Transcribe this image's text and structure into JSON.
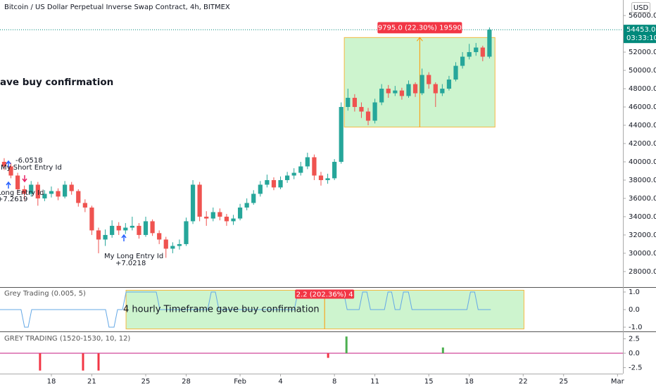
{
  "header": {
    "title": "Bitcoin / US Dollar Perpetual Inverse Swap Contract, 4h, BITMEX",
    "currency": "USD"
  },
  "chart_data": [
    {
      "type": "candlestick",
      "x": [
        14.5,
        15,
        15.5,
        16,
        16.5,
        17,
        17.5,
        18,
        18.5,
        19,
        19.5,
        20,
        20.5,
        21,
        21.5,
        22,
        22.5,
        23,
        23.5,
        24,
        24.5,
        25,
        25.5,
        26,
        26.5,
        27,
        27.5,
        28,
        28.5,
        29,
        29.5,
        30,
        30.5,
        31,
        31.5,
        32,
        32.5,
        33,
        33.5,
        34,
        34.5,
        35,
        35.5,
        36,
        36.5,
        37,
        37.5,
        38,
        38.5,
        39,
        39.5,
        40,
        40.5,
        41,
        41.5,
        42,
        42.5,
        43,
        43.5,
        44,
        44.5,
        45,
        45.5,
        46,
        46.5,
        47,
        47.5,
        48,
        48.5,
        49,
        49.5,
        50,
        50.5
      ],
      "open": [
        40000,
        39500,
        38500,
        37000,
        36500,
        37500,
        36000,
        36500,
        36800,
        36200,
        37500,
        36800,
        35500,
        35000,
        32500,
        31500,
        32000,
        33000,
        32500,
        32800,
        33000,
        32000,
        33500,
        32200,
        31500,
        30500,
        30800,
        31000,
        33500,
        37500,
        34000,
        33800,
        34500,
        34000,
        33500,
        33800,
        35000,
        35500,
        36500,
        37500,
        38000,
        37200,
        38000,
        38500,
        38800,
        39500,
        40500,
        38500,
        38000,
        38200,
        40000,
        46000,
        47000,
        46000,
        45500,
        44500,
        46500,
        48000,
        47500,
        47800,
        47200,
        48500,
        47500,
        49500,
        48500,
        47500,
        48000,
        49000,
        50500,
        51500,
        52000,
        52500,
        51500
      ],
      "high": [
        40400,
        39900,
        38800,
        37400,
        37900,
        37800,
        36900,
        37300,
        37100,
        37900,
        37800,
        37000,
        35900,
        35200,
        32800,
        32600,
        33600,
        33400,
        33300,
        34000,
        33300,
        34000,
        33700,
        32500,
        31800,
        31200,
        31500,
        33900,
        38000,
        37800,
        34600,
        35000,
        34900,
        34300,
        34200,
        35400,
        36000,
        36900,
        37900,
        38600,
        38300,
        38400,
        38900,
        39300,
        40000,
        41000,
        40800,
        38900,
        38700,
        40300,
        46500,
        48000,
        47400,
        46500,
        45900,
        46900,
        48500,
        48400,
        48300,
        48100,
        48900,
        48700,
        50200,
        49800,
        48700,
        48500,
        49400,
        50900,
        52000,
        52900,
        53000,
        52700,
        54700
      ],
      "low": [
        39100,
        38200,
        36600,
        35800,
        36200,
        35200,
        35700,
        36100,
        35800,
        36000,
        36400,
        35100,
        34500,
        32000,
        30000,
        30800,
        31700,
        32000,
        32100,
        32500,
        31600,
        31800,
        31900,
        31000,
        29500,
        30000,
        30400,
        30800,
        33200,
        33500,
        33000,
        33500,
        33600,
        33000,
        33100,
        33600,
        34700,
        35300,
        36200,
        37200,
        36900,
        37000,
        37700,
        38100,
        38500,
        39200,
        38000,
        37400,
        37600,
        38000,
        39800,
        45600,
        45500,
        44800,
        44000,
        44200,
        46200,
        47000,
        47200,
        46800,
        47000,
        47100,
        47300,
        48000,
        46000,
        47200,
        47800,
        48800,
        50200,
        51200,
        51600,
        51000,
        51300
      ],
      "close": [
        39500,
        38500,
        37000,
        36500,
        37500,
        36000,
        36500,
        36800,
        36200,
        37500,
        36800,
        35500,
        35000,
        32500,
        31500,
        32000,
        33000,
        32500,
        32800,
        33000,
        32000,
        33500,
        32200,
        31500,
        30500,
        30800,
        31000,
        33500,
        37500,
        34000,
        33800,
        34500,
        34000,
        33500,
        33800,
        35000,
        35500,
        36500,
        37500,
        38000,
        37200,
        38000,
        38500,
        38800,
        39500,
        40500,
        38500,
        38000,
        38200,
        40000,
        46000,
        47000,
        46000,
        45500,
        44500,
        46500,
        48000,
        47500,
        47800,
        47200,
        48500,
        47500,
        49500,
        48500,
        47500,
        48000,
        49000,
        50500,
        51500,
        52000,
        52500,
        51500,
        54453
      ],
      "up_color": "#26a69a",
      "down_color": "#ef5350",
      "xlim": [
        14.19,
        60.4
      ],
      "xticks": [
        {
          "value": 18,
          "label": "18"
        },
        {
          "value": 21,
          "label": "21"
        },
        {
          "value": 25,
          "label": "25"
        },
        {
          "value": 28,
          "label": "28"
        },
        {
          "value": 32,
          "label": "Feb"
        },
        {
          "value": 35,
          "label": "4"
        },
        {
          "value": 39,
          "label": "8"
        },
        {
          "value": 42,
          "label": "11"
        },
        {
          "value": 46,
          "label": "15"
        },
        {
          "value": 49,
          "label": "18"
        },
        {
          "value": 53,
          "label": "22"
        },
        {
          "value": 56,
          "label": "25"
        },
        {
          "value": 60,
          "label": "Mar"
        }
      ],
      "ylim": [
        26300,
        57700
      ],
      "yticks": [
        {
          "value": 28000,
          "label": "28000.0"
        },
        {
          "value": 30000,
          "label": "30000.0"
        },
        {
          "value": 32000,
          "label": "32000.0"
        },
        {
          "value": 34000,
          "label": "34000.0"
        },
        {
          "value": 36000,
          "label": "36000.0"
        },
        {
          "value": 38000,
          "label": "38000.0"
        },
        {
          "value": 40000,
          "label": "40000.0"
        },
        {
          "value": 42000,
          "label": "42000.0"
        },
        {
          "value": 44000,
          "label": "44000.0"
        },
        {
          "value": 46000,
          "label": "46000.0"
        },
        {
          "value": 48000,
          "label": "48000.0"
        },
        {
          "value": 50000,
          "label": "50000.0"
        },
        {
          "value": 52000,
          "label": "52000.0"
        },
        {
          "value": 56000,
          "label": "56000.0"
        }
      ],
      "last_price": {
        "value": 54453,
        "label": "54453.0",
        "countdown": "03:33:10",
        "color": "#00897b"
      },
      "measure": {
        "x": [
          39.73,
          50.91
        ],
        "y": [
          43800,
          53595
        ],
        "label": "9795.0 (22.30%) 19590",
        "arrow_x": 45.33
      },
      "notes": [
        "ave buy confirmation",
        "-6.0518",
        "My Short Entry Id",
        "Long Entry Id",
        "+7.2619",
        "My Long Entry Id",
        "+7.0218"
      ]
    },
    {
      "type": "line",
      "title": "Grey Trading (0.005, 5)",
      "color": "#64a8e6",
      "x": [
        14.19,
        15.75,
        16.01,
        16.28,
        16.54,
        22.02,
        22.28,
        22.65,
        22.91,
        23.28,
        23.54,
        25.78,
        26.05,
        29.6,
        29.86,
        30.17,
        30.43,
        36.02,
        36.29,
        39.68,
        39.94,
        40.83,
        41.09,
        41.41,
        41.67,
        42.71,
        42.97,
        43.24,
        43.5,
        43.86,
        44.12,
        44.49,
        44.75,
        48.83,
        49.09,
        49.4,
        49.66,
        50.6
      ],
      "values": [
        0,
        0,
        -1,
        -1,
        0,
        0,
        -1,
        -1,
        0,
        0,
        1,
        1,
        0,
        0,
        1,
        1,
        0,
        0,
        1,
        1,
        0,
        0,
        1,
        1,
        0,
        0,
        1,
        1,
        0,
        0,
        1,
        1,
        0,
        0,
        1,
        1,
        0,
        0
      ],
      "ylim": [
        -1.2,
        1.24
      ],
      "yticks": [
        {
          "value": 1,
          "label": "1.0"
        },
        {
          "value": 0,
          "label": "0.0"
        },
        {
          "value": -1,
          "label": "-1.0"
        }
      ],
      "measure": {
        "x": [
          23.54,
          53.06
        ],
        "y": [
          -1.1,
          1.1
        ],
        "label": "2.2 (202.36%) 4",
        "line_x": 38.27
      },
      "note": "4 hourly Timeframe gave buy confirmation"
    },
    {
      "type": "bar",
      "title": "GREY TRADING (1520-1530, 10, 12)",
      "x": [
        17.16,
        20.35,
        21.5,
        38.53,
        39.89,
        47.05
      ],
      "values": [
        -3,
        -3,
        -3,
        -0.8,
        2.9,
        1.0
      ],
      "up_color": "#4caf50",
      "down_color": "#f23645",
      "zero_line_color": "#d0489a",
      "ylim": [
        -3.41,
        3.54
      ],
      "yticks": [
        {
          "value": 2.5,
          "label": "2.5"
        },
        {
          "value": 0,
          "label": "0.0"
        },
        {
          "value": -2.5,
          "label": "-2.5"
        }
      ]
    }
  ]
}
